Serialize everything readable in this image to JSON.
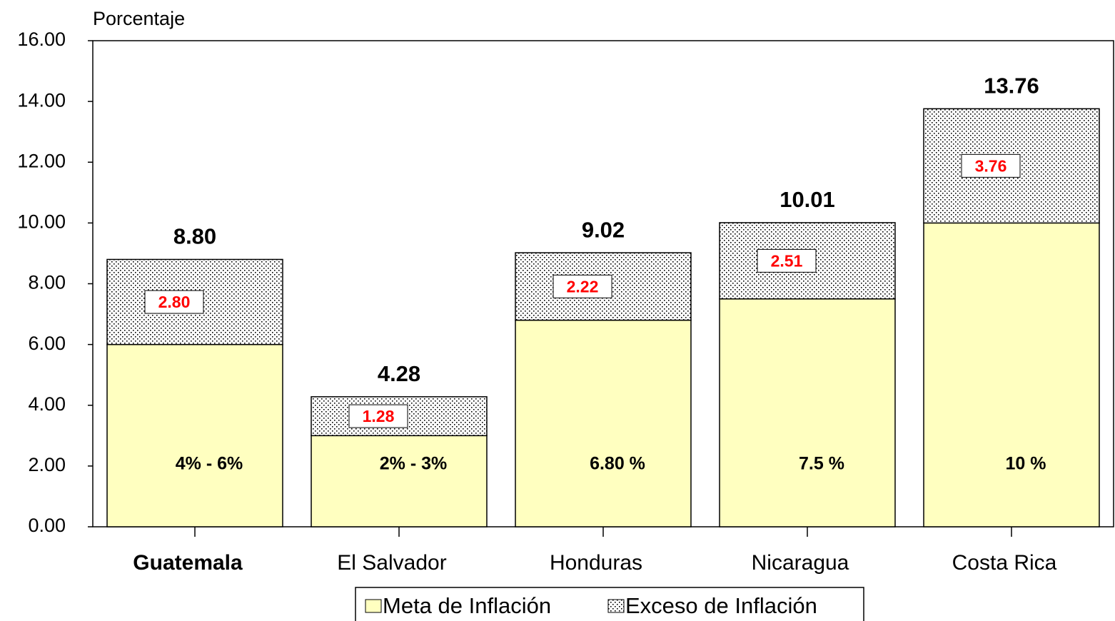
{
  "chart_data": {
    "type": "stacked_bar",
    "y_label": "Porcentaje",
    "categories": [
      "Guatemala",
      "El Salvador",
      "Honduras",
      "Nicaragua",
      "Costa Rica"
    ],
    "series": [
      {
        "name": "Meta de Inflación",
        "color": "#ffffc0",
        "values": [
          6,
          3,
          6.8,
          7.5,
          10
        ],
        "value_labels": [
          "4% - 6%",
          "2% - 3%",
          "6.80 %",
          "7.5 %",
          "10 %"
        ]
      },
      {
        "name": "Exceso de Inflación",
        "color": "#000000",
        "values": [
          2.8,
          1.28,
          2.22,
          2.51,
          3.76
        ],
        "value_labels": [
          "2.80",
          "1.28",
          "2.22",
          "2.51",
          "3.76"
        ]
      }
    ],
    "total_labels": [
      "8.80",
      "4.28",
      "9.02",
      "10.01",
      "13.76"
    ],
    "ylim": [
      0,
      16
    ],
    "yticks": [
      {
        "value": 0,
        "label": "0.00"
      },
      {
        "value": 2,
        "label": "2.00"
      },
      {
        "value": 4,
        "label": "4.00"
      },
      {
        "value": 6,
        "label": "6.00"
      },
      {
        "value": 8,
        "label": "8.00"
      },
      {
        "value": 10,
        "label": "10.00"
      },
      {
        "value": 12,
        "label": "12.00"
      },
      {
        "value": 14,
        "label": "14.00"
      },
      {
        "value": 16,
        "label": "16.00"
      }
    ]
  }
}
